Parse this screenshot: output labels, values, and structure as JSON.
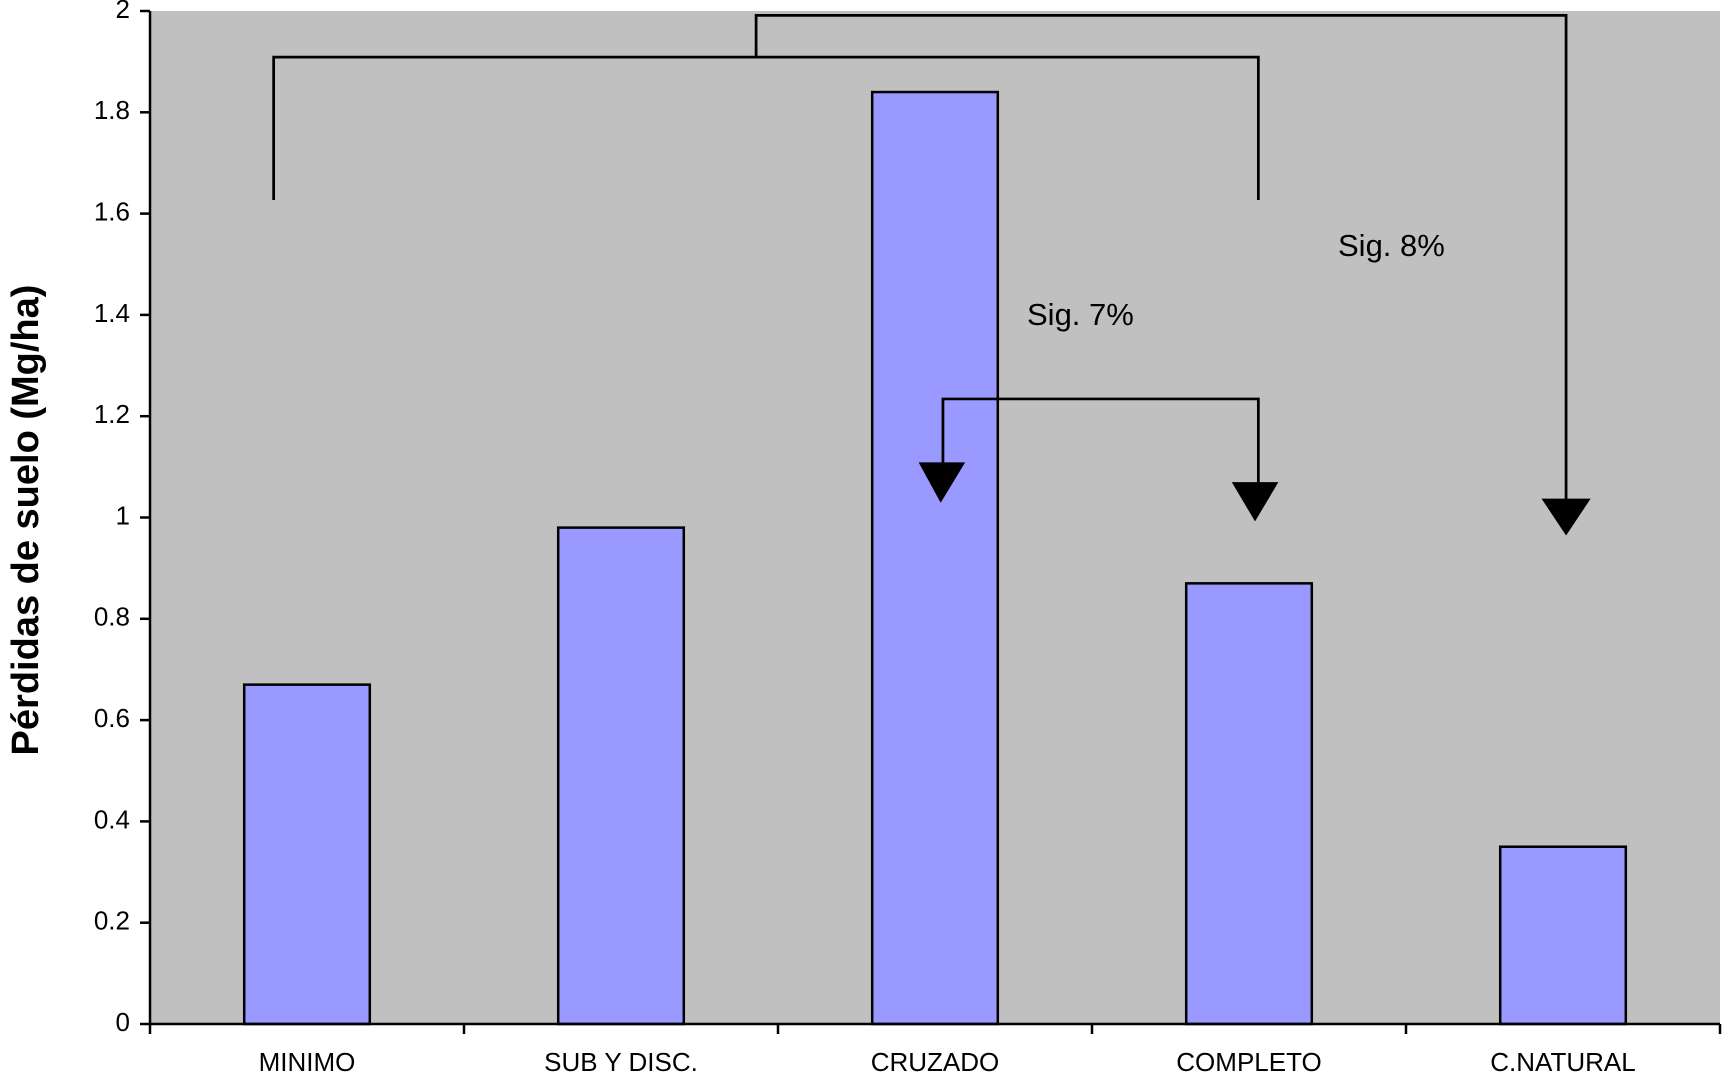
{
  "chart_data": {
    "type": "bar",
    "y_label": "Pérdidas de suelo (Mg/ha)",
    "categories": [
      "MINIMO",
      "SUB Y DISC.",
      "CRUZADO",
      "COMPLETO",
      "C.NATURAL"
    ],
    "values": [
      0.67,
      0.98,
      1.84,
      0.87,
      0.35
    ],
    "color": "#9999ff",
    "ylim": [
      0,
      2
    ],
    "yticks": [
      0,
      0.2,
      0.4,
      0.6,
      0.8,
      1,
      1.2,
      1.4,
      1.6,
      1.8,
      2
    ],
    "annotations": [
      "Sig. 7%",
      "Sig. 8%"
    ]
  }
}
